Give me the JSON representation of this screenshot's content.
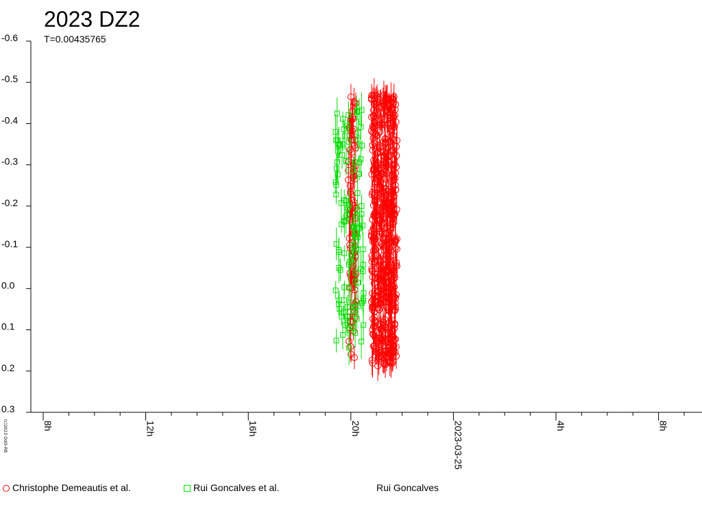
{
  "title": "2023 DZ2",
  "subtitle": "T=0.00435765",
  "credit": "(c)2023 OdO-RB",
  "chart_data": {
    "type": "scatter",
    "title": "2023 DZ2",
    "ylim": [
      0.3,
      -0.6
    ],
    "y_reversed": true,
    "y_ticks": [
      "-0.6",
      "-0.5",
      "-0.4",
      "-0.3",
      "-0.2",
      "-0.1",
      "0.0",
      "0.1",
      "0.2",
      "0.3"
    ],
    "x_ticks": [
      "8h",
      "12h",
      "16h",
      "20h",
      "2023-03-25",
      "4h",
      "8h"
    ],
    "grid": false,
    "series": [
      {
        "name": "Christophe Demeautis et al.",
        "marker": "circle",
        "color": "#ff0000",
        "x_range_h": [
          19.9,
          20.2
        ],
        "y_range": [
          -0.47,
          0.17
        ],
        "count": 90
      },
      {
        "name": "Rui Goncalves et al.",
        "marker": "square",
        "color": "#00dd00",
        "x_range_h": [
          19.4,
          20.5
        ],
        "y_range": [
          -0.44,
          0.15
        ],
        "count": 110
      },
      {
        "name": "",
        "marker": "circle",
        "color": "#ff0000",
        "x_range_h": [
          20.8,
          21.8
        ],
        "y_range": [
          -0.47,
          0.19
        ],
        "count": 520
      }
    ]
  },
  "legend": [
    {
      "label": "Christophe Demeautis et al.",
      "marker": "circle"
    },
    {
      "label": "Rui Goncalves et al.",
      "marker": "square"
    },
    {
      "label": "Rui Goncalves",
      "marker": "none"
    }
  ]
}
